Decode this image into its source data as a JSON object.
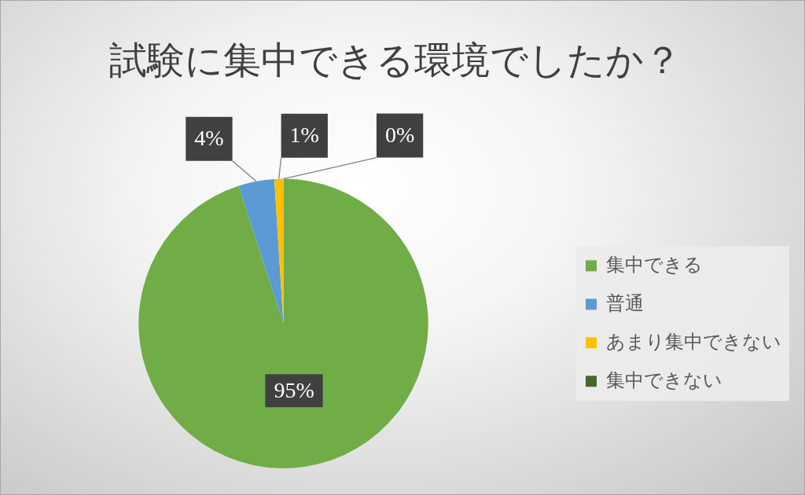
{
  "chart_data": {
    "type": "pie",
    "title": "試験に集中できる環境でしたか？",
    "categories": [
      "集中できる",
      "普通",
      "あまり集中できない",
      "集中できない"
    ],
    "values": [
      95,
      4,
      1,
      0
    ],
    "colors": [
      "#70ad47",
      "#5b9bd5",
      "#ffc000",
      "#43682b"
    ],
    "value_labels": [
      "95%",
      "4%",
      "1%",
      "0%"
    ],
    "legend": "right"
  }
}
